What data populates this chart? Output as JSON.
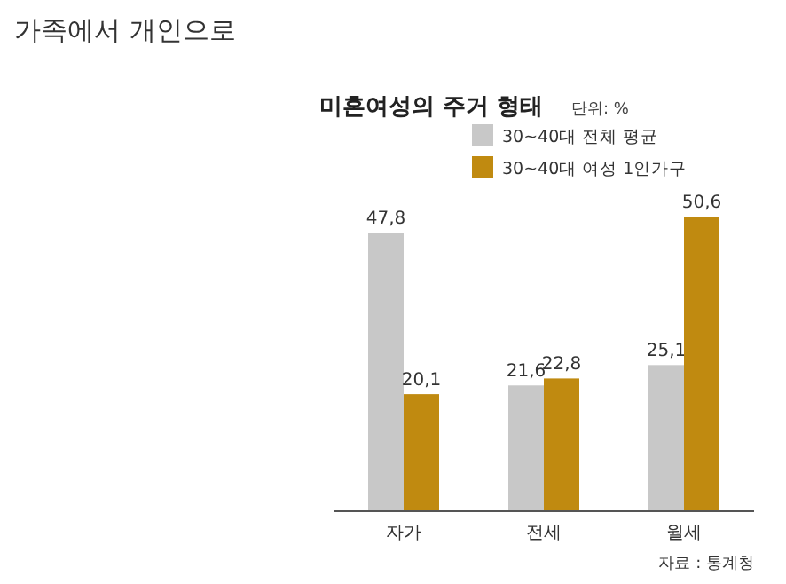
{
  "chart_data": {
    "type": "bar",
    "title": "가족에서 개인으로",
    "subtitle": "미혼여성의 주거 형태",
    "annotations": [
      "단위: %",
      "자료 : 통계청"
    ],
    "categories": [
      "자가",
      "전세",
      "월세"
    ],
    "series": [
      {
        "name": "30~40대 전체 평균",
        "color": "#c8c8c8",
        "values": [
          47.8,
          21.6,
          25.1
        ],
        "value_labels": [
          "47,8",
          "21,6",
          "25,1"
        ]
      },
      {
        "name": "30~40대 여성 1인가구",
        "color": "#c08a10",
        "values": [
          20.1,
          22.8,
          50.6
        ],
        "value_labels": [
          "20,1",
          "22,8",
          "50,6"
        ]
      }
    ],
    "legend": "top right"
  }
}
